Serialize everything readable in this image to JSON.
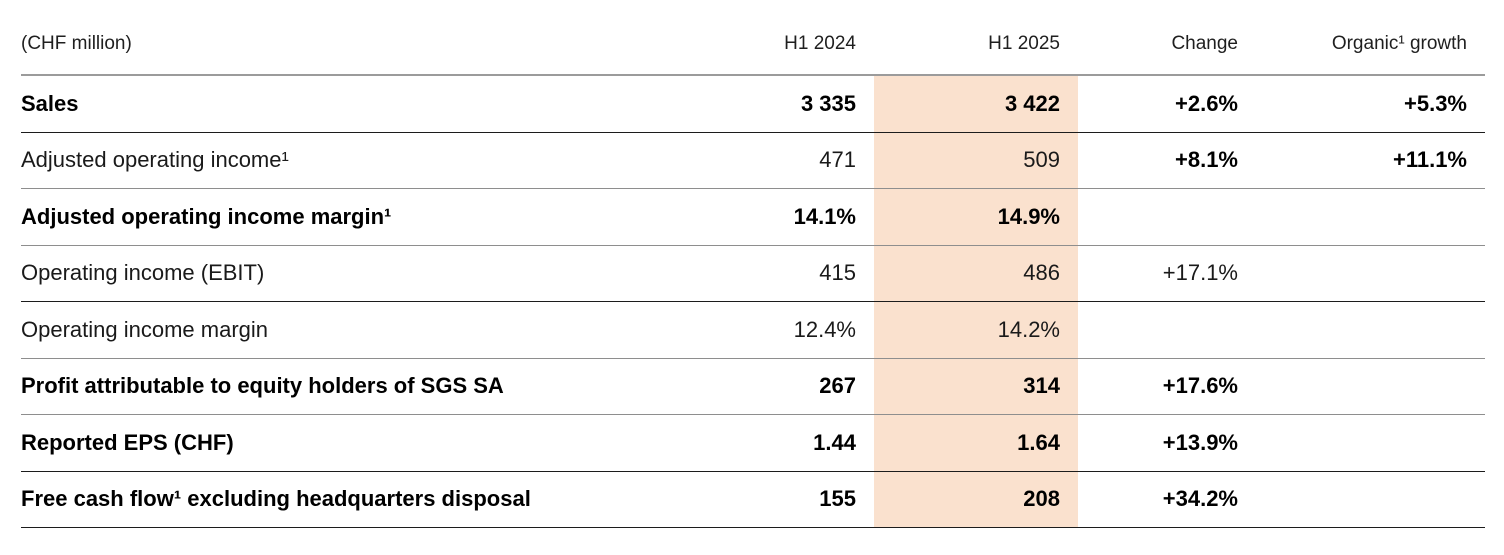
{
  "header": {
    "unit": "(CHF million)",
    "h1_2024": "H1 2024",
    "h1_2025": "H1 2025",
    "change": "Change",
    "organic": "Organic¹ growth"
  },
  "colors": {
    "highlight_column": "#FAE1CE",
    "text": "#1a1a1a",
    "dark_rule": "#1c1c1c",
    "light_rule": "#8e8e8e"
  },
  "rows": [
    {
      "label": "Sales",
      "h1_2024": "3 335",
      "h1_2025": "3 422",
      "change": "+2.6%",
      "organic": "+5.3%"
    },
    {
      "label": "Adjusted operating income¹",
      "h1_2024": "471",
      "h1_2025": "509",
      "change": "+8.1%",
      "organic": "+11.1%"
    },
    {
      "label": "Adjusted operating income margin¹",
      "h1_2024": "14.1%",
      "h1_2025": "14.9%",
      "change": "",
      "organic": ""
    },
    {
      "label": "Operating income (EBIT)",
      "h1_2024": "415",
      "h1_2025": "486",
      "change": "+17.1%",
      "organic": ""
    },
    {
      "label": "Operating income margin",
      "h1_2024": "12.4%",
      "h1_2025": "14.2%",
      "change": "",
      "organic": ""
    },
    {
      "label": "Profit attributable to equity holders of SGS SA",
      "h1_2024": "267",
      "h1_2025": "314",
      "change": "+17.6%",
      "organic": ""
    },
    {
      "label": "Reported EPS (CHF)",
      "h1_2024": "1.44",
      "h1_2025": "1.64",
      "change": "+13.9%",
      "organic": ""
    },
    {
      "label": "Free cash flow¹ excluding headquarters disposal",
      "h1_2024": "155",
      "h1_2025": "208",
      "change": "+34.2%",
      "organic": ""
    }
  ]
}
